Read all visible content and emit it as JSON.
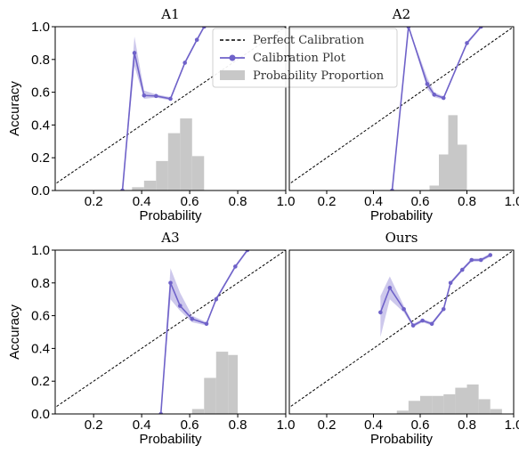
{
  "chart_data": [
    {
      "type": "line",
      "title": "A1",
      "xlabel": "Probability",
      "ylabel": "Accuracy",
      "xlim": [
        0.04,
        1.0
      ],
      "ylim": [
        0.0,
        1.0
      ],
      "xticks": [
        "0.2",
        "0.4",
        "0.6",
        "0.8",
        "1.0"
      ],
      "yticks": [
        "0.0",
        "0.2",
        "0.4",
        "0.6",
        "0.8",
        "1.0"
      ],
      "series": [
        {
          "name": "Perfect Calibration",
          "style": "dashed",
          "color": "#000000",
          "x": [
            0.0,
            1.0
          ],
          "y": [
            0.0,
            1.0
          ]
        },
        {
          "name": "Calibration Plot",
          "style": "line-marker",
          "color": "#6f62c9",
          "x": [
            0.32,
            0.37,
            0.41,
            0.46,
            0.52,
            0.58,
            0.63,
            0.66
          ],
          "y": [
            0.0,
            0.84,
            0.58,
            0.577,
            0.56,
            0.78,
            0.92,
            1.0
          ],
          "band_low": [
            0.0,
            0.76,
            0.56,
            0.567,
            0.55,
            0.77,
            0.91,
            0.99
          ],
          "band_high": [
            0.0,
            0.94,
            0.61,
            0.587,
            0.57,
            0.79,
            0.93,
            1.0
          ]
        },
        {
          "name": "Probability Proportion",
          "style": "histogram",
          "color": "#c8c8c8",
          "bin_edges": [
            0.36,
            0.41,
            0.46,
            0.51,
            0.56,
            0.61,
            0.66
          ],
          "heights": [
            0.02,
            0.06,
            0.18,
            0.35,
            0.44,
            0.21
          ]
        }
      ],
      "legend": "top-right"
    },
    {
      "type": "line",
      "title": "A2",
      "xlabel": "Probability",
      "ylabel": "",
      "xlim": [
        0.04,
        1.0
      ],
      "ylim": [
        0.0,
        1.0
      ],
      "xticks": [
        "0.2",
        "0.4",
        "0.6",
        "0.8",
        "1.0"
      ],
      "yticks": [],
      "series": [
        {
          "name": "Perfect Calibration",
          "style": "dashed",
          "color": "#000000",
          "x": [
            0.0,
            1.0
          ],
          "y": [
            0.0,
            1.0
          ]
        },
        {
          "name": "Calibration Plot",
          "style": "line-marker",
          "color": "#6f62c9",
          "x": [
            0.48,
            0.55,
            0.63,
            0.66,
            0.7,
            0.8,
            0.86
          ],
          "y": [
            0.0,
            1.0,
            0.65,
            0.585,
            0.565,
            0.9,
            1.0
          ],
          "band_low": [
            0.0,
            1.0,
            0.62,
            0.57,
            0.555,
            0.89,
            0.99
          ],
          "band_high": [
            0.0,
            1.0,
            0.69,
            0.6,
            0.575,
            0.91,
            1.0
          ]
        },
        {
          "name": "Probability Proportion",
          "style": "histogram",
          "color": "#c8c8c8",
          "bin_edges": [
            0.64,
            0.68,
            0.72,
            0.76,
            0.8
          ],
          "heights": [
            0.03,
            0.22,
            0.46,
            0.28
          ]
        }
      ]
    },
    {
      "type": "line",
      "title": "A3",
      "xlabel": "Probability",
      "ylabel": "Accuracy",
      "xlim": [
        0.04,
        1.0
      ],
      "ylim": [
        0.0,
        1.0
      ],
      "xticks": [
        "0.2",
        "0.4",
        "0.6",
        "0.8",
        "1.0"
      ],
      "yticks": [
        "0.0",
        "0.2",
        "0.4",
        "0.6",
        "0.8",
        "1.0"
      ],
      "series": [
        {
          "name": "Perfect Calibration",
          "style": "dashed",
          "color": "#000000",
          "x": [
            0.0,
            1.0
          ],
          "y": [
            0.0,
            1.0
          ]
        },
        {
          "name": "Calibration Plot",
          "style": "line-marker",
          "color": "#6f62c9",
          "x": [
            0.48,
            0.52,
            0.56,
            0.61,
            0.67,
            0.71,
            0.79,
            0.84
          ],
          "y": [
            0.0,
            0.8,
            0.66,
            0.58,
            0.55,
            0.7,
            0.9,
            1.0
          ],
          "band_low": [
            0.0,
            0.7,
            0.63,
            0.56,
            0.54,
            0.69,
            0.89,
            0.99
          ],
          "band_high": [
            0.0,
            0.89,
            0.74,
            0.6,
            0.56,
            0.71,
            0.91,
            1.0
          ]
        },
        {
          "name": "Probability Proportion",
          "style": "histogram",
          "color": "#c8c8c8",
          "bin_edges": [
            0.61,
            0.66,
            0.71,
            0.76,
            0.8
          ],
          "heights": [
            0.03,
            0.22,
            0.38,
            0.36
          ]
        }
      ]
    },
    {
      "type": "line",
      "title": "Ours",
      "xlabel": "Probability",
      "ylabel": "",
      "xlim": [
        0.04,
        1.0
      ],
      "ylim": [
        0.0,
        1.0
      ],
      "xticks": [
        "0.2",
        "0.4",
        "0.6",
        "0.8",
        "1.0"
      ],
      "yticks": [],
      "series": [
        {
          "name": "Perfect Calibration",
          "style": "dashed",
          "color": "#000000",
          "x": [
            0.0,
            1.0
          ],
          "y": [
            0.0,
            1.0
          ]
        },
        {
          "name": "Calibration Plot",
          "style": "line-marker",
          "color": "#6f62c9",
          "x": [
            0.43,
            0.47,
            0.53,
            0.57,
            0.61,
            0.65,
            0.7,
            0.73,
            0.78,
            0.82,
            0.86,
            0.9
          ],
          "y": [
            0.62,
            0.77,
            0.64,
            0.54,
            0.57,
            0.55,
            0.64,
            0.8,
            0.88,
            0.94,
            0.94,
            0.97
          ],
          "band_low": [
            0.47,
            0.7,
            0.62,
            0.53,
            0.56,
            0.54,
            0.63,
            0.79,
            0.87,
            0.93,
            0.93,
            0.96
          ],
          "band_high": [
            0.72,
            0.84,
            0.66,
            0.55,
            0.58,
            0.56,
            0.65,
            0.81,
            0.89,
            0.95,
            0.95,
            0.98
          ]
        },
        {
          "name": "Probability Proportion",
          "style": "histogram",
          "color": "#c8c8c8",
          "bin_edges": [
            0.5,
            0.55,
            0.6,
            0.65,
            0.7,
            0.75,
            0.8,
            0.85,
            0.9,
            0.95
          ],
          "heights": [
            0.02,
            0.08,
            0.11,
            0.11,
            0.12,
            0.16,
            0.18,
            0.09,
            0.03
          ]
        }
      ]
    }
  ]
}
